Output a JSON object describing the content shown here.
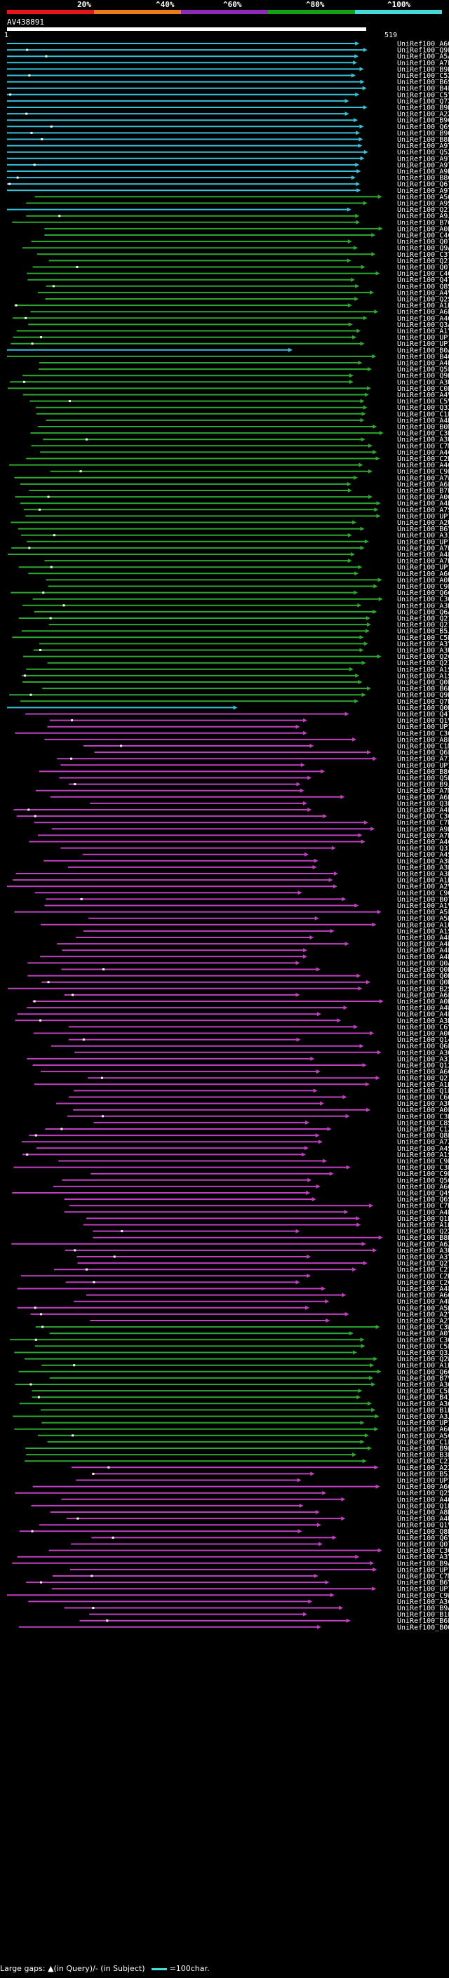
{
  "colors": {
    "identity_bins": [
      "#e8151c",
      "#ee7b1b",
      "#8e2bb5",
      "#16a016",
      "#45dada"
    ],
    "lt40": "#c040c0",
    "lt60": "#2fa82f",
    "lt80": "#2fa82f",
    "ge80": "#38c0d8",
    "background": "#000000"
  },
  "scale": {
    "labels": [
      "20%",
      "^40%",
      "^60%",
      "^80%",
      "^100%"
    ]
  },
  "query": {
    "id": "AV438891",
    "start": "1",
    "end": "519"
  },
  "chart_data": {
    "type": "alignment-overview",
    "title": "AV438891",
    "query_length": 519,
    "x_range": [
      1,
      519
    ],
    "hits": []
  },
  "footer": {
    "text": "Large gaps: ▲(in Query)/- (in Subject)",
    "legend": "=100char."
  }
}
